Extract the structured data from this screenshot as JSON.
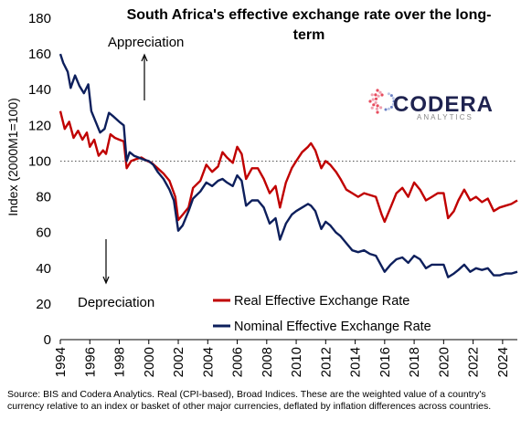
{
  "logo": {
    "name": "CODERA",
    "sub": "ANALYTICS",
    "colors": [
      "#e74c5e",
      "#f0a0b0",
      "#6a7fc4",
      "#b8c4e6"
    ]
  },
  "annotations": {
    "appreciation": "Appreciation",
    "depreciation": "Depreciation"
  },
  "source": "Source: BIS and Codera Analytics. Real (CPI-based), Broad Indices. These are the weighted value of a country's currency relative to an index or basket of other major currencies, deflated by inflation differences across countries.",
  "chart_data": {
    "type": "line",
    "title_lines": [
      "South Africa's effective exchange rate over the long-",
      "term"
    ],
    "xlabel": "",
    "ylabel": "Index (2000M1=100)",
    "ylim": [
      0,
      180
    ],
    "yticks": [
      0,
      20,
      40,
      60,
      80,
      100,
      120,
      140,
      160,
      180
    ],
    "xlim": [
      1994,
      2025
    ],
    "xticks": [
      1994,
      1996,
      1998,
      2000,
      2002,
      2004,
      2006,
      2008,
      2010,
      2012,
      2014,
      2016,
      2018,
      2020,
      2022,
      2024
    ],
    "reference_line": 100,
    "grid": false,
    "legend_position": "bottom-right",
    "series": [
      {
        "name": "Real Effective Exchange Rate",
        "color": "#c00000",
        "points": [
          [
            1994.0,
            128
          ],
          [
            1994.3,
            118
          ],
          [
            1994.6,
            122
          ],
          [
            1994.9,
            113
          ],
          [
            1995.2,
            117
          ],
          [
            1995.5,
            112
          ],
          [
            1995.8,
            116
          ],
          [
            1996.0,
            108
          ],
          [
            1996.3,
            112
          ],
          [
            1996.6,
            103
          ],
          [
            1996.9,
            106
          ],
          [
            1997.1,
            104
          ],
          [
            1997.4,
            115
          ],
          [
            1997.7,
            113
          ],
          [
            1998.0,
            112
          ],
          [
            1998.3,
            111
          ],
          [
            1998.5,
            96
          ],
          [
            1998.8,
            100
          ],
          [
            1999.1,
            101
          ],
          [
            1999.5,
            102
          ],
          [
            1999.9,
            100
          ],
          [
            2000.2,
            99
          ],
          [
            2000.6,
            96
          ],
          [
            2001.0,
            93
          ],
          [
            2001.4,
            89
          ],
          [
            2001.8,
            80
          ],
          [
            2002.0,
            67
          ],
          [
            2002.3,
            70
          ],
          [
            2002.7,
            74
          ],
          [
            2003.0,
            85
          ],
          [
            2003.5,
            89
          ],
          [
            2003.9,
            98
          ],
          [
            2004.3,
            94
          ],
          [
            2004.7,
            97
          ],
          [
            2005.0,
            105
          ],
          [
            2005.3,
            102
          ],
          [
            2005.7,
            99
          ],
          [
            2006.0,
            108
          ],
          [
            2006.3,
            104
          ],
          [
            2006.6,
            90
          ],
          [
            2007.0,
            96
          ],
          [
            2007.4,
            96
          ],
          [
            2007.8,
            90
          ],
          [
            2008.2,
            82
          ],
          [
            2008.6,
            86
          ],
          [
            2008.9,
            74
          ],
          [
            2009.3,
            88
          ],
          [
            2009.7,
            96
          ],
          [
            2010.0,
            100
          ],
          [
            2010.4,
            105
          ],
          [
            2010.8,
            108
          ],
          [
            2011.0,
            110
          ],
          [
            2011.3,
            106
          ],
          [
            2011.7,
            96
          ],
          [
            2012.0,
            100
          ],
          [
            2012.3,
            98
          ],
          [
            2012.7,
            94
          ],
          [
            2013.0,
            90
          ],
          [
            2013.4,
            84
          ],
          [
            2013.8,
            82
          ],
          [
            2014.2,
            80
          ],
          [
            2014.6,
            82
          ],
          [
            2015.0,
            81
          ],
          [
            2015.4,
            80
          ],
          [
            2015.8,
            70
          ],
          [
            2016.0,
            66
          ],
          [
            2016.4,
            74
          ],
          [
            2016.8,
            82
          ],
          [
            2017.2,
            85
          ],
          [
            2017.6,
            80
          ],
          [
            2018.0,
            88
          ],
          [
            2018.4,
            84
          ],
          [
            2018.8,
            78
          ],
          [
            2019.2,
            80
          ],
          [
            2019.6,
            82
          ],
          [
            2020.0,
            82
          ],
          [
            2020.3,
            68
          ],
          [
            2020.7,
            72
          ],
          [
            2021.0,
            78
          ],
          [
            2021.4,
            84
          ],
          [
            2021.8,
            78
          ],
          [
            2022.2,
            80
          ],
          [
            2022.6,
            77
          ],
          [
            2023.0,
            79
          ],
          [
            2023.4,
            72
          ],
          [
            2023.8,
            74
          ],
          [
            2024.2,
            75
          ],
          [
            2024.6,
            76
          ],
          [
            2025.0,
            78
          ]
        ]
      },
      {
        "name": "Nominal Effective Exchange Rate",
        "color": "#0d1f5c",
        "points": [
          [
            1994.0,
            160
          ],
          [
            1994.2,
            155
          ],
          [
            1994.5,
            150
          ],
          [
            1994.7,
            141
          ],
          [
            1995.0,
            148
          ],
          [
            1995.3,
            142
          ],
          [
            1995.6,
            138
          ],
          [
            1995.9,
            143
          ],
          [
            1996.1,
            128
          ],
          [
            1996.4,
            122
          ],
          [
            1996.7,
            116
          ],
          [
            1997.0,
            118
          ],
          [
            1997.3,
            127
          ],
          [
            1997.6,
            125
          ],
          [
            1998.0,
            122
          ],
          [
            1998.3,
            120
          ],
          [
            1998.5,
            100
          ],
          [
            1998.7,
            105
          ],
          [
            1999.0,
            103
          ],
          [
            1999.3,
            102
          ],
          [
            1999.6,
            101
          ],
          [
            2000.0,
            100
          ],
          [
            2000.3,
            98
          ],
          [
            2000.6,
            94
          ],
          [
            2001.0,
            90
          ],
          [
            2001.4,
            84
          ],
          [
            2001.7,
            78
          ],
          [
            2002.0,
            61
          ],
          [
            2002.3,
            64
          ],
          [
            2002.7,
            72
          ],
          [
            2003.0,
            79
          ],
          [
            2003.5,
            83
          ],
          [
            2003.9,
            88
          ],
          [
            2004.3,
            86
          ],
          [
            2004.7,
            89
          ],
          [
            2005.0,
            90
          ],
          [
            2005.3,
            88
          ],
          [
            2005.7,
            86
          ],
          [
            2006.0,
            92
          ],
          [
            2006.3,
            89
          ],
          [
            2006.6,
            75
          ],
          [
            2007.0,
            78
          ],
          [
            2007.4,
            78
          ],
          [
            2007.8,
            74
          ],
          [
            2008.2,
            65
          ],
          [
            2008.6,
            68
          ],
          [
            2008.9,
            56
          ],
          [
            2009.3,
            65
          ],
          [
            2009.7,
            70
          ],
          [
            2010.0,
            72
          ],
          [
            2010.4,
            74
          ],
          [
            2010.8,
            76
          ],
          [
            2011.0,
            75
          ],
          [
            2011.3,
            72
          ],
          [
            2011.7,
            62
          ],
          [
            2012.0,
            66
          ],
          [
            2012.3,
            64
          ],
          [
            2012.7,
            60
          ],
          [
            2013.0,
            58
          ],
          [
            2013.4,
            54
          ],
          [
            2013.8,
            50
          ],
          [
            2014.2,
            49
          ],
          [
            2014.6,
            50
          ],
          [
            2015.0,
            48
          ],
          [
            2015.4,
            47
          ],
          [
            2015.8,
            41
          ],
          [
            2016.0,
            38
          ],
          [
            2016.4,
            42
          ],
          [
            2016.8,
            45
          ],
          [
            2017.2,
            46
          ],
          [
            2017.6,
            43
          ],
          [
            2018.0,
            47
          ],
          [
            2018.4,
            45
          ],
          [
            2018.8,
            40
          ],
          [
            2019.2,
            42
          ],
          [
            2019.6,
            42
          ],
          [
            2020.0,
            42
          ],
          [
            2020.3,
            35
          ],
          [
            2020.7,
            37
          ],
          [
            2021.0,
            39
          ],
          [
            2021.4,
            42
          ],
          [
            2021.8,
            38
          ],
          [
            2022.2,
            40
          ],
          [
            2022.6,
            39
          ],
          [
            2023.0,
            40
          ],
          [
            2023.4,
            36
          ],
          [
            2023.8,
            36
          ],
          [
            2024.2,
            37
          ],
          [
            2024.6,
            37
          ],
          [
            2025.0,
            38
          ]
        ]
      }
    ]
  }
}
